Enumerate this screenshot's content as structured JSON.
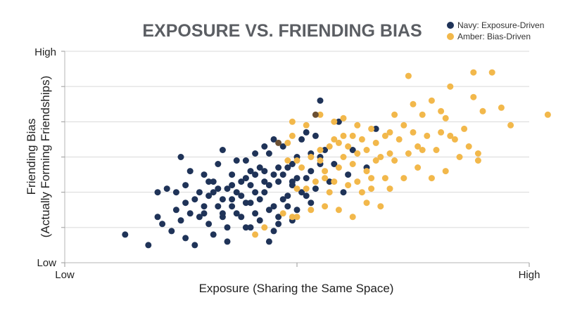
{
  "chart_data": {
    "type": "scatter",
    "title": "EXPOSURE VS. FRIENDING BIAS",
    "xlabel": "Exposure (Sharing the Same Space)",
    "ylabel_line1": "Friending Bias",
    "ylabel_line2": "(Actually Forming Friendships)",
    "x_low_label": "Low",
    "x_high_label": "High",
    "y_low_label": "Low",
    "y_high_label": "High",
    "xlim": [
      0,
      10
    ],
    "ylim": [
      0,
      6
    ],
    "grid": true,
    "legend_position": "top-right",
    "colors": {
      "navy": "#1f3358",
      "amber": "#f2b84b",
      "overlap": "#6b5033"
    },
    "series": [
      {
        "name": "Navy: Exposure-Driven",
        "color": "#1f3358",
        "points": [
          [
            1.3,
            0.8
          ],
          [
            1.8,
            0.5
          ],
          [
            2.0,
            2.0
          ],
          [
            2.2,
            2.1
          ],
          [
            2.1,
            1.1
          ],
          [
            2.3,
            0.9
          ],
          [
            2.4,
            1.5
          ],
          [
            2.5,
            1.2
          ],
          [
            2.6,
            0.7
          ],
          [
            2.7,
            1.4
          ],
          [
            2.5,
            3.0
          ],
          [
            2.6,
            2.2
          ],
          [
            2.8,
            1.8
          ],
          [
            2.8,
            0.5
          ],
          [
            2.9,
            1.3
          ],
          [
            3.0,
            1.6
          ],
          [
            3.0,
            2.5
          ],
          [
            3.1,
            1.9
          ],
          [
            3.1,
            1.1
          ],
          [
            3.2,
            2.3
          ],
          [
            3.3,
            1.6
          ],
          [
            3.3,
            2.8
          ],
          [
            3.4,
            1.4
          ],
          [
            3.4,
            3.2
          ],
          [
            3.5,
            2.1
          ],
          [
            3.5,
            1.0
          ],
          [
            3.6,
            1.6
          ],
          [
            3.6,
            2.5
          ],
          [
            3.7,
            2.0
          ],
          [
            3.7,
            2.9
          ],
          [
            3.8,
            1.3
          ],
          [
            3.8,
            2.3
          ],
          [
            3.9,
            1.7
          ],
          [
            3.9,
            1.0
          ],
          [
            4.0,
            2.2
          ],
          [
            4.0,
            2.6
          ],
          [
            4.1,
            1.4
          ],
          [
            4.1,
            3.1
          ],
          [
            4.1,
            2.0
          ],
          [
            4.2,
            1.8
          ],
          [
            4.2,
            1.2
          ],
          [
            4.3,
            3.3
          ],
          [
            4.3,
            2.6
          ],
          [
            4.3,
            2.0
          ],
          [
            4.4,
            1.5
          ],
          [
            4.4,
            2.2
          ],
          [
            4.5,
            0.9
          ],
          [
            4.5,
            1.6
          ],
          [
            4.6,
            2.3
          ],
          [
            4.6,
            1.3
          ],
          [
            4.7,
            1.8
          ],
          [
            4.7,
            2.5
          ],
          [
            4.8,
            1.9
          ],
          [
            4.8,
            1.6
          ],
          [
            4.9,
            2.3
          ],
          [
            4.9,
            1.2
          ],
          [
            5.0,
            2.4
          ],
          [
            5.0,
            3.0
          ],
          [
            5.0,
            1.5
          ],
          [
            5.1,
            2.0
          ],
          [
            5.2,
            2.4
          ],
          [
            5.2,
            3.7
          ],
          [
            5.3,
            3.1
          ],
          [
            5.3,
            2.6
          ],
          [
            5.4,
            2.1
          ],
          [
            5.5,
            2.8
          ],
          [
            5.6,
            3.2
          ],
          [
            4.5,
            2.5
          ],
          [
            4.6,
            2.7
          ],
          [
            3.2,
            0.8
          ],
          [
            3.5,
            0.6
          ],
          [
            2.7,
            2.6
          ],
          [
            3.9,
            2.4
          ],
          [
            4.2,
            2.7
          ],
          [
            4.4,
            3.1
          ],
          [
            4.7,
            3.3
          ],
          [
            4.9,
            2.8
          ],
          [
            5.1,
            3.5
          ],
          [
            5.4,
            3.6
          ],
          [
            5.5,
            4.6
          ],
          [
            5.9,
            4.0
          ],
          [
            5.8,
            2.8
          ],
          [
            5.2,
            1.9
          ],
          [
            4.9,
            2.2
          ],
          [
            4.6,
            1.1
          ],
          [
            4.3,
            2.3
          ],
          [
            4.1,
            2.5
          ],
          [
            3.8,
            1.9
          ],
          [
            3.6,
            1.8
          ],
          [
            3.3,
            2.1
          ],
          [
            3.1,
            2.3
          ],
          [
            2.9,
            2.0
          ],
          [
            2.6,
            1.7
          ],
          [
            2.4,
            2.0
          ],
          [
            3.0,
            1.4
          ],
          [
            3.4,
            1.3
          ],
          [
            3.7,
            1.4
          ],
          [
            4.0,
            1.0
          ],
          [
            4.4,
            0.6
          ],
          [
            2.0,
            1.3
          ],
          [
            6.2,
            3.2
          ],
          [
            6.5,
            2.7
          ],
          [
            6.7,
            3.8
          ],
          [
            6.0,
            2.0
          ],
          [
            5.7,
            2.3
          ],
          [
            5.5,
            3.0
          ],
          [
            4.8,
            2.7
          ],
          [
            4.5,
            3.5
          ],
          [
            6.1,
            2.5
          ],
          [
            3.9,
            2.9
          ],
          [
            4.0,
            1.7
          ],
          [
            3.6,
            2.2
          ],
          [
            3.4,
            1.8
          ],
          [
            3.2,
            2.0
          ],
          [
            5.3,
            1.7
          ]
        ]
      },
      {
        "name": "Amber: Bias-Driven",
        "color": "#f2b84b",
        "points": [
          [
            4.1,
            0.8
          ],
          [
            4.3,
            1.0
          ],
          [
            4.7,
            1.4
          ],
          [
            4.8,
            2.9
          ],
          [
            4.8,
            3.4
          ],
          [
            4.9,
            3.6
          ],
          [
            4.9,
            4.0
          ],
          [
            4.9,
            1.3
          ],
          [
            5.0,
            1.3
          ],
          [
            5.0,
            2.1
          ],
          [
            5.1,
            2.7
          ],
          [
            5.2,
            2.1
          ],
          [
            5.3,
            3.0
          ],
          [
            5.3,
            1.5
          ],
          [
            5.4,
            2.3
          ],
          [
            5.5,
            2.9
          ],
          [
            5.5,
            3.2
          ],
          [
            5.5,
            4.2
          ],
          [
            5.6,
            2.6
          ],
          [
            5.7,
            2.0
          ],
          [
            5.7,
            3.3
          ],
          [
            5.8,
            2.3
          ],
          [
            5.8,
            3.5
          ],
          [
            5.9,
            1.5
          ],
          [
            5.9,
            2.7
          ],
          [
            6.0,
            3.6
          ],
          [
            6.0,
            3.0
          ],
          [
            6.1,
            2.2
          ],
          [
            6.1,
            3.3
          ],
          [
            6.2,
            1.3
          ],
          [
            6.2,
            2.8
          ],
          [
            6.2,
            3.6
          ],
          [
            6.3,
            3.1
          ],
          [
            6.3,
            2.3
          ],
          [
            6.4,
            2.0
          ],
          [
            6.4,
            3.5
          ],
          [
            6.5,
            1.7
          ],
          [
            6.5,
            2.6
          ],
          [
            6.5,
            3.2
          ],
          [
            6.6,
            3.8
          ],
          [
            6.6,
            2.1
          ],
          [
            6.7,
            2.9
          ],
          [
            6.7,
            3.4
          ],
          [
            6.8,
            3.0
          ],
          [
            6.8,
            1.6
          ],
          [
            6.9,
            2.4
          ],
          [
            6.9,
            3.6
          ],
          [
            7.0,
            3.1
          ],
          [
            7.0,
            2.1
          ],
          [
            7.1,
            4.2
          ],
          [
            7.1,
            2.9
          ],
          [
            7.2,
            3.5
          ],
          [
            7.3,
            2.4
          ],
          [
            7.3,
            3.9
          ],
          [
            7.4,
            3.1
          ],
          [
            7.4,
            5.3
          ],
          [
            7.5,
            4.5
          ],
          [
            7.5,
            3.7
          ],
          [
            7.6,
            2.7
          ],
          [
            7.7,
            4.2
          ],
          [
            7.7,
            3.2
          ],
          [
            7.8,
            3.6
          ],
          [
            7.9,
            2.4
          ],
          [
            7.9,
            4.6
          ],
          [
            8.0,
            3.2
          ],
          [
            8.1,
            4.3
          ],
          [
            8.1,
            3.7
          ],
          [
            8.2,
            4.1
          ],
          [
            8.2,
            2.6
          ],
          [
            8.3,
            5.0
          ],
          [
            8.4,
            3.5
          ],
          [
            8.5,
            3.0
          ],
          [
            8.6,
            3.8
          ],
          [
            8.7,
            3.3
          ],
          [
            8.8,
            4.7
          ],
          [
            8.8,
            5.4
          ],
          [
            8.9,
            3.1
          ],
          [
            9.0,
            4.3
          ],
          [
            9.2,
            5.4
          ],
          [
            9.4,
            4.4
          ],
          [
            9.6,
            3.9
          ],
          [
            10.4,
            4.2
          ],
          [
            6.0,
            4.1
          ],
          [
            6.3,
            3.9
          ],
          [
            5.8,
            4.0
          ],
          [
            5.2,
            3.9
          ],
          [
            5.6,
            1.6
          ],
          [
            6.6,
            2.4
          ],
          [
            7.0,
            3.7
          ],
          [
            7.6,
            3.3
          ],
          [
            8.3,
            3.6
          ],
          [
            8.9,
            2.9
          ],
          [
            5.9,
            3.4
          ],
          [
            5.6,
            2.4
          ],
          [
            5.0,
            2.9
          ]
        ]
      },
      {
        "name": "",
        "color": "#6b5033",
        "points": [
          [
            4.6,
            3.4
          ],
          [
            5.4,
            4.2
          ]
        ]
      }
    ]
  },
  "legend": {
    "items": [
      {
        "label": "Navy: Exposure-Driven",
        "color": "#1f3358"
      },
      {
        "label": "Amber: Bias-Driven",
        "color": "#f2b84b"
      }
    ]
  }
}
